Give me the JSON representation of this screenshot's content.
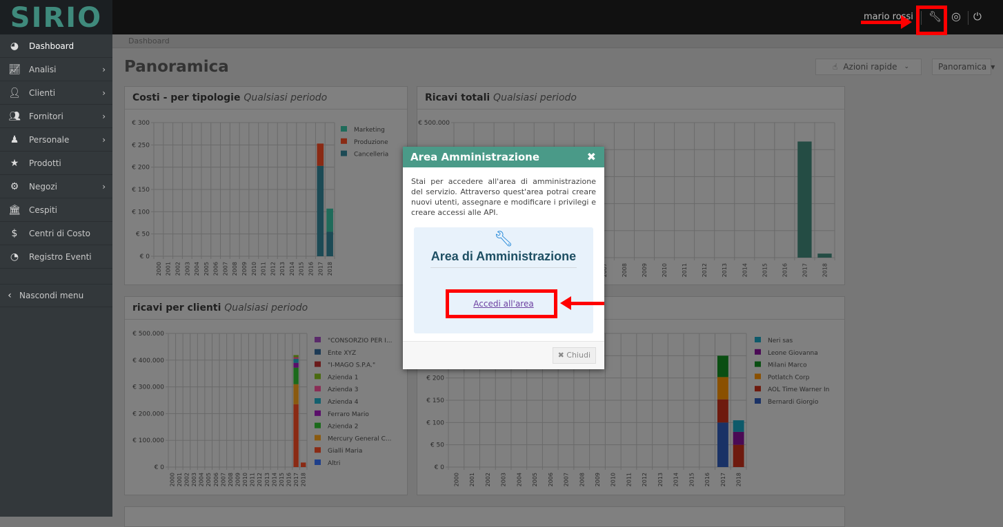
{
  "app": {
    "logo": "SIRIO",
    "user": "mario rossi",
    "icons": [
      "wrench-icon",
      "lifebuoy-icon",
      "power-icon"
    ]
  },
  "sidebar": {
    "items": [
      {
        "label": "Dashboard",
        "icon": "dashboard-icon",
        "submenu": false,
        "active": true
      },
      {
        "label": "Analisi",
        "icon": "line-chart-icon",
        "submenu": true
      },
      {
        "label": "Clienti",
        "icon": "user-icon",
        "submenu": true
      },
      {
        "label": "Fornitori",
        "icon": "users-icon",
        "submenu": true
      },
      {
        "label": "Personale",
        "icon": "male-icon",
        "submenu": true
      },
      {
        "label": "Prodotti",
        "icon": "star-icon",
        "submenu": false
      },
      {
        "label": "Negozi",
        "icon": "gear-icon",
        "submenu": true
      },
      {
        "label": "Cespiti",
        "icon": "bank-icon",
        "submenu": false
      },
      {
        "label": "Centri di Costo",
        "icon": "dollar-icon",
        "submenu": false
      },
      {
        "label": "Registro Eventi",
        "icon": "rss-icon",
        "submenu": false
      }
    ],
    "hide": "Nascondi menu"
  },
  "breadcrumb": "Dashboard",
  "page": {
    "title": "Panoramica",
    "quick_actions": "Azioni rapide",
    "view_select": "Panoramica"
  },
  "period": "Qualsiasi periodo",
  "chart_data": [
    {
      "type": "bar",
      "stacked": true,
      "title": "Costi - per tipologie",
      "categories": [
        "2000",
        "2001",
        "2002",
        "2003",
        "2004",
        "2005",
        "2006",
        "2007",
        "2008",
        "2009",
        "2010",
        "2011",
        "2012",
        "2013",
        "2014",
        "2015",
        "2016",
        "2017",
        "2018"
      ],
      "ylim": [
        0,
        300
      ],
      "yticks": [
        "€ 0",
        "€ 50",
        "€ 100",
        "€ 150",
        "€ 200",
        "€ 250",
        "€ 300"
      ],
      "grid": true,
      "legend": "right",
      "series": [
        {
          "name": "Cancelleria",
          "color": "#1c4a55",
          "values": {
            "2017": 203,
            "2018": 55
          }
        },
        {
          "name": "Produzione",
          "color": "#8a2a14",
          "values": {
            "2017": 50
          }
        },
        {
          "name": "Marketing",
          "color": "#1f6b5a",
          "values": {
            "2018": 52
          }
        }
      ]
    },
    {
      "type": "bar",
      "title": "Ricavi totali",
      "categories": [
        "2000",
        "2001",
        "2002",
        "2003",
        "2004",
        "2005",
        "2006",
        "2007",
        "2008",
        "2009",
        "2010",
        "2011",
        "2012",
        "2013",
        "2014",
        "2015",
        "2016",
        "2017",
        "2018"
      ],
      "ylim": [
        0,
        500000
      ],
      "yticks": [
        "€ 500.000"
      ],
      "grid": true,
      "legend": "none",
      "series": [
        {
          "color": "#244c44",
          "values": {
            "2017": 430000,
            "2018": 15000
          }
        }
      ]
    },
    {
      "type": "bar",
      "stacked": true,
      "title": "ricavi per clienti",
      "categories": [
        "2000",
        "2001",
        "2002",
        "2003",
        "2004",
        "2005",
        "2006",
        "2007",
        "2008",
        "2009",
        "2010",
        "2011",
        "2012",
        "2013",
        "2014",
        "2015",
        "2016",
        "2017",
        "2018"
      ],
      "ylim": [
        0,
        500000
      ],
      "yticks": [
        "€ 0",
        "€ 100.000",
        "€ 200.000",
        "€ 300.000",
        "€ 400.000",
        "€ 500.000"
      ],
      "grid": true,
      "legend": "right",
      "series": [
        {
          "name": "Altri",
          "color": "#1f3f8a",
          "values": {}
        },
        {
          "name": "Gialli Maria",
          "color": "#8a2a14",
          "values": {
            "2017": 235000,
            "2018": 17000
          }
        },
        {
          "name": "Mercury General C...",
          "color": "#8a5a10",
          "values": {
            "2017": 75000
          }
        },
        {
          "name": "Azienda 2",
          "color": "#1b6a1b",
          "values": {
            "2017": 62000
          }
        },
        {
          "name": "Ferraro Mario",
          "color": "#5a0e6a",
          "values": {
            "2017": 18000
          }
        },
        {
          "name": "Azienda 4",
          "color": "#12606e",
          "values": {
            "2017": 15000
          }
        },
        {
          "name": "Azienda 3",
          "color": "#8a2d55",
          "values": {
            "2017": 6000
          }
        },
        {
          "name": "Azienda 1",
          "color": "#4a6a10",
          "values": {
            "2017": 8000
          }
        },
        {
          "name": "\"I-MAGO S.P.A.\"",
          "color": "#6a1a1a",
          "values": {}
        },
        {
          "name": "Ente XYZ",
          "color": "#1c3a55",
          "values": {}
        },
        {
          "name": "\"CONSORZIO PER I...",
          "color": "#5a2a6a",
          "values": {}
        }
      ]
    },
    {
      "type": "bar",
      "stacked": true,
      "title": "",
      "categories": [
        "2000",
        "2001",
        "2002",
        "2003",
        "2004",
        "2005",
        "2006",
        "2007",
        "2008",
        "2009",
        "2010",
        "2011",
        "2012",
        "2013",
        "2014",
        "2015",
        "2016",
        "2017",
        "2018"
      ],
      "ylim": [
        0,
        300
      ],
      "yticks": [
        "€ 0",
        "€ 50",
        "€ 100",
        "€ 150",
        "€ 200"
      ],
      "grid": true,
      "legend": "right",
      "series": [
        {
          "name": "Bernardi Giorgio",
          "color": "#1a3266",
          "values": {
            "2017": 100
          }
        },
        {
          "name": "AOL Time Warner In",
          "color": "#6e1a0e",
          "values": {
            "2017": 52,
            "2018": 50
          }
        },
        {
          "name": "Potlatch Corp",
          "color": "#8a5000",
          "values": {
            "2017": 50
          }
        },
        {
          "name": "Milani Marco",
          "color": "#0a4e12",
          "values": {
            "2017": 48
          }
        },
        {
          "name": "Leone Giovanna",
          "color": "#4a0a55",
          "values": {
            "2018": 29
          }
        },
        {
          "name": "Neri sas",
          "color": "#0e5a6a",
          "values": {
            "2018": 26
          }
        }
      ]
    }
  ],
  "modal": {
    "title": "Area Amministrazione",
    "text": "Stai per accedere all'area di amministrazione del servizio. Attraverso quest'area potrai creare nuovi utenti, assegnare e modificare i privilegi e creare accessi alle API.",
    "box_title": "Area di Amministrazione",
    "link": "Accedi all'area",
    "close": "Chiudi",
    "accent": "#4a9a88"
  }
}
